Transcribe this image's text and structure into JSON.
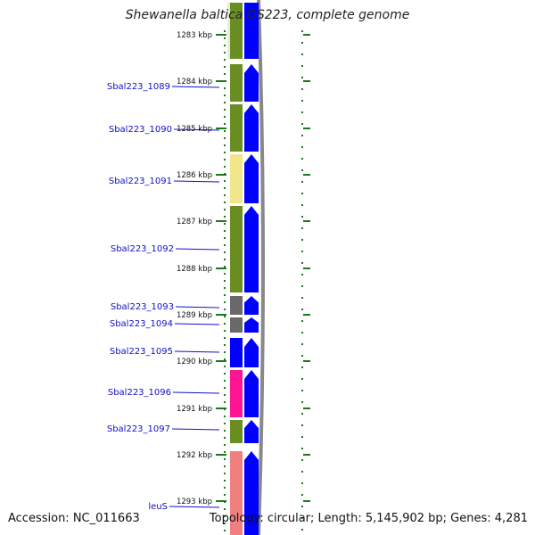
{
  "title": "Shewanella baltica OS223, complete genome",
  "accession": "Accession: NC_011663",
  "summary": "Topology: circular; Length: 5,145,902 bp; Genes: 4,281",
  "colors": {
    "forward_arrow": "#0000ff",
    "label_line": "#1010c8",
    "tick": "#1a7a1a",
    "backbone": "#888888"
  },
  "ticks": [
    "1283 kbp",
    "1284 kbp",
    "1285 kbp",
    "1286 kbp",
    "1287 kbp",
    "1288 kbp",
    "1289 kbp",
    "1290 kbp",
    "1291 kbp",
    "1292 kbp",
    "1293 kbp"
  ],
  "genes": [
    {
      "label": "",
      "color": "#6b8e23"
    },
    {
      "label": "Sbal223_1089",
      "color": "#6b8e23"
    },
    {
      "label": "Sbal223_1090",
      "color": "#6b8e23"
    },
    {
      "label": "Sbal223_1091",
      "color": "#f0e68c"
    },
    {
      "label": "Sbal223_1092",
      "color": "#6b8e23"
    },
    {
      "label": "Sbal223_1093",
      "color": "#696969"
    },
    {
      "label": "Sbal223_1094",
      "color": "#696969"
    },
    {
      "label": "Sbal223_1095",
      "color": "#0000ff"
    },
    {
      "label": "Sbal223_1096",
      "color": "#ff1493"
    },
    {
      "label": "Sbal223_1097",
      "color": "#6b8e23"
    },
    {
      "label": "leuS",
      "color": "#f08080"
    }
  ]
}
